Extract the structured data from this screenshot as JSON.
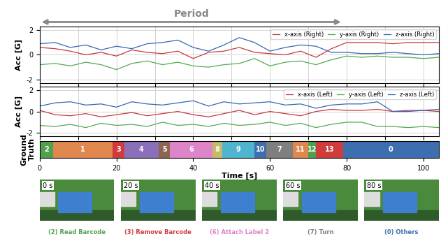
{
  "chart_data": [
    {
      "type": "line",
      "ylabel": "Acc [G]",
      "x": [
        0,
        4,
        8,
        12,
        16,
        20,
        24,
        28,
        32,
        36,
        40,
        44,
        48,
        52,
        56,
        60,
        64,
        68,
        72,
        76,
        80,
        84,
        88,
        92,
        96,
        100,
        104
      ],
      "series": [
        {
          "name": "x-axis (Right)",
          "color": "#c8383a",
          "values": [
            0.6,
            0.5,
            0.3,
            0.0,
            0.2,
            -0.1,
            0.4,
            0.2,
            0.1,
            0.3,
            -0.3,
            0.2,
            0.3,
            0.6,
            0.2,
            0.1,
            0.0,
            0.3,
            -0.2,
            0.5,
            1.0,
            1.0,
            1.0,
            0.9,
            1.0,
            1.0,
            1.0
          ]
        },
        {
          "name": "y-axis (Right)",
          "color": "#55a84f",
          "values": [
            -0.8,
            -0.7,
            -0.9,
            -0.6,
            -0.8,
            -1.2,
            -0.7,
            -0.5,
            -0.8,
            -0.6,
            -0.9,
            -1.0,
            -0.8,
            -0.7,
            -0.3,
            -0.9,
            -0.6,
            -0.5,
            -0.8,
            -0.4,
            -0.1,
            -0.2,
            -0.1,
            -0.2,
            -0.2,
            -0.3,
            -0.2
          ]
        },
        {
          "name": "z-axis (Right)",
          "color": "#3466b5",
          "values": [
            0.9,
            1.0,
            0.6,
            0.8,
            0.4,
            0.7,
            0.5,
            0.9,
            1.0,
            1.2,
            0.6,
            0.3,
            0.8,
            1.4,
            1.0,
            0.3,
            0.6,
            0.8,
            0.7,
            0.2,
            0.2,
            0.1,
            0.1,
            0.2,
            0.1,
            0.0,
            0.1
          ]
        }
      ],
      "xlim": [
        0,
        104
      ],
      "xticks": [
        0,
        10,
        20,
        30,
        40,
        50,
        60,
        70,
        80,
        90,
        100
      ],
      "ylim": [
        -2.3,
        2.3
      ],
      "yticks": [
        -2,
        0,
        2
      ],
      "grid": true,
      "legend": "upper right",
      "tick_labels": "y",
      "annotations": [
        {
          "text": "Period",
          "x_start": 0,
          "x_end": 79
        }
      ]
    },
    {
      "type": "line",
      "ylabel": "Acc [G]",
      "x": [
        0,
        4,
        8,
        12,
        16,
        20,
        24,
        28,
        32,
        36,
        40,
        44,
        48,
        52,
        56,
        60,
        64,
        68,
        72,
        76,
        80,
        84,
        88,
        92,
        96,
        100,
        104
      ],
      "series": [
        {
          "name": "x-axis (Left)",
          "color": "#c8383a",
          "values": [
            0.1,
            -0.3,
            -0.4,
            -0.2,
            -0.5,
            -0.3,
            -0.1,
            -0.4,
            -0.2,
            0.0,
            -0.3,
            -0.5,
            -0.2,
            0.1,
            -0.3,
            0.0,
            -0.2,
            -0.4,
            0.0,
            0.2,
            0.1,
            0.1,
            0.2,
            0.0,
            0.1,
            0.1,
            0.0
          ]
        },
        {
          "name": "y-axis (Left)",
          "color": "#55a84f",
          "values": [
            -1.3,
            -1.4,
            -1.2,
            -1.5,
            -1.1,
            -1.3,
            -1.2,
            -1.4,
            -1.0,
            -1.3,
            -1.2,
            -1.4,
            -1.1,
            -1.3,
            -1.2,
            -1.0,
            -1.3,
            -1.1,
            -1.5,
            -1.2,
            -1.0,
            -1.0,
            -1.4,
            -1.4,
            -1.5,
            -1.4,
            -1.5
          ]
        },
        {
          "name": "z-axis (Left)",
          "color": "#3466b5",
          "values": [
            0.5,
            0.8,
            0.9,
            0.6,
            0.7,
            0.4,
            0.9,
            0.7,
            0.6,
            0.8,
            1.0,
            0.5,
            0.9,
            0.7,
            0.8,
            0.9,
            0.6,
            0.7,
            0.3,
            0.6,
            0.7,
            0.7,
            0.9,
            0.0,
            0.0,
            0.1,
            0.2
          ]
        }
      ],
      "xlim": [
        0,
        104
      ],
      "xticks": [
        0,
        10,
        20,
        30,
        40,
        50,
        60,
        70,
        80,
        90,
        100
      ],
      "ylim": [
        -2.3,
        2.3
      ],
      "yticks": [
        -2,
        0,
        2
      ],
      "grid": true,
      "legend": "upper right",
      "tick_labels": "y"
    },
    {
      "type": "segments",
      "ylabel": "Ground\nTruth",
      "xlabel": "Time [s]",
      "segments": [
        {
          "label": "2",
          "start": 0,
          "end": 3.5,
          "color": "#4fa04f"
        },
        {
          "label": "1",
          "start": 3.5,
          "end": 19,
          "color": "#e0874f"
        },
        {
          "label": "3",
          "start": 19,
          "end": 22,
          "color": "#d03b3b"
        },
        {
          "label": "4",
          "start": 22,
          "end": 31,
          "color": "#8a70b8"
        },
        {
          "label": "5",
          "start": 31,
          "end": 34,
          "color": "#8c6650"
        },
        {
          "label": "6",
          "start": 34,
          "end": 45,
          "color": "#dd85c8"
        },
        {
          "label": "8",
          "start": 45,
          "end": 47.5,
          "color": "#c5b96a"
        },
        {
          "label": "9",
          "start": 47.5,
          "end": 56,
          "color": "#4fb5cf"
        },
        {
          "label": "10",
          "start": 56,
          "end": 59,
          "color": "#3d6fb0"
        },
        {
          "label": "7",
          "start": 59,
          "end": 66,
          "color": "#7f7f7f"
        },
        {
          "label": "11",
          "start": 66,
          "end": 70,
          "color": "#e0874f"
        },
        {
          "label": "12",
          "start": 70,
          "end": 72,
          "color": "#4fa04f"
        },
        {
          "label": "13",
          "start": 72,
          "end": 79,
          "color": "#d03b3b"
        },
        {
          "label": "0",
          "start": 79,
          "end": 104,
          "color": "#3d6fb0"
        }
      ],
      "xlim": [
        0,
        104
      ],
      "xticks": [
        0,
        20,
        40,
        60,
        80,
        100
      ],
      "tick_labels": "x"
    }
  ],
  "images": [
    {
      "time": "0 s",
      "caption": "(2) Read Barcode",
      "color": "#4fa04f"
    },
    {
      "time": "20 s",
      "caption": "(3) Remove Barcode",
      "color": "#d03b3b"
    },
    {
      "time": "40 s",
      "caption": "(6) Attach Label 2",
      "color": "#dd85c8"
    },
    {
      "time": "60 s",
      "caption": "(7) Turn",
      "color": "#7f7f7f"
    },
    {
      "time": "80 s",
      "caption": "(0) Others",
      "color": "#3d6fb0"
    }
  ]
}
